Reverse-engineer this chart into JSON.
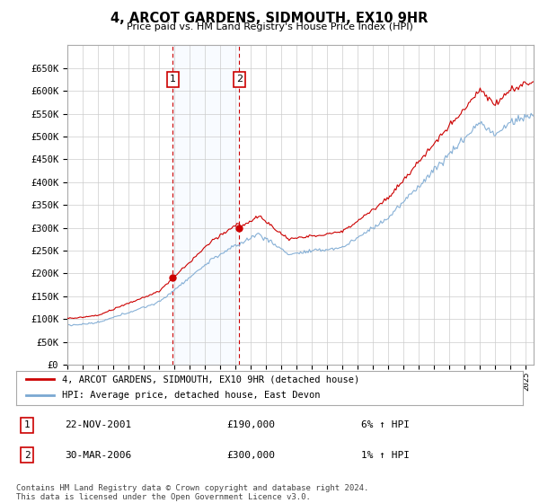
{
  "title": "4, ARCOT GARDENS, SIDMOUTH, EX10 9HR",
  "subtitle": "Price paid vs. HM Land Registry's House Price Index (HPI)",
  "legend_line1": "4, ARCOT GARDENS, SIDMOUTH, EX10 9HR (detached house)",
  "legend_line2": "HPI: Average price, detached house, East Devon",
  "table_rows": [
    {
      "num": "1",
      "date": "22-NOV-2001",
      "price": "£190,000",
      "hpi": "6% ↑ HPI"
    },
    {
      "num": "2",
      "date": "30-MAR-2006",
      "price": "£300,000",
      "hpi": "1% ↑ HPI"
    }
  ],
  "footnote": "Contains HM Land Registry data © Crown copyright and database right 2024.\nThis data is licensed under the Open Government Licence v3.0.",
  "sale1_year": 2001.9,
  "sale1_price": 190000,
  "sale2_year": 2006.25,
  "sale2_price": 300000,
  "ylim": [
    0,
    700000
  ],
  "yticks": [
    0,
    50000,
    100000,
    150000,
    200000,
    250000,
    300000,
    350000,
    400000,
    450000,
    500000,
    550000,
    600000,
    650000
  ],
  "xlim_start": 1995,
  "xlim_end": 2025.5,
  "background_color": "#ffffff",
  "grid_color": "#cccccc",
  "red_color": "#cc0000",
  "blue_color": "#7aa8d2",
  "shade_color": "#ddeeff"
}
